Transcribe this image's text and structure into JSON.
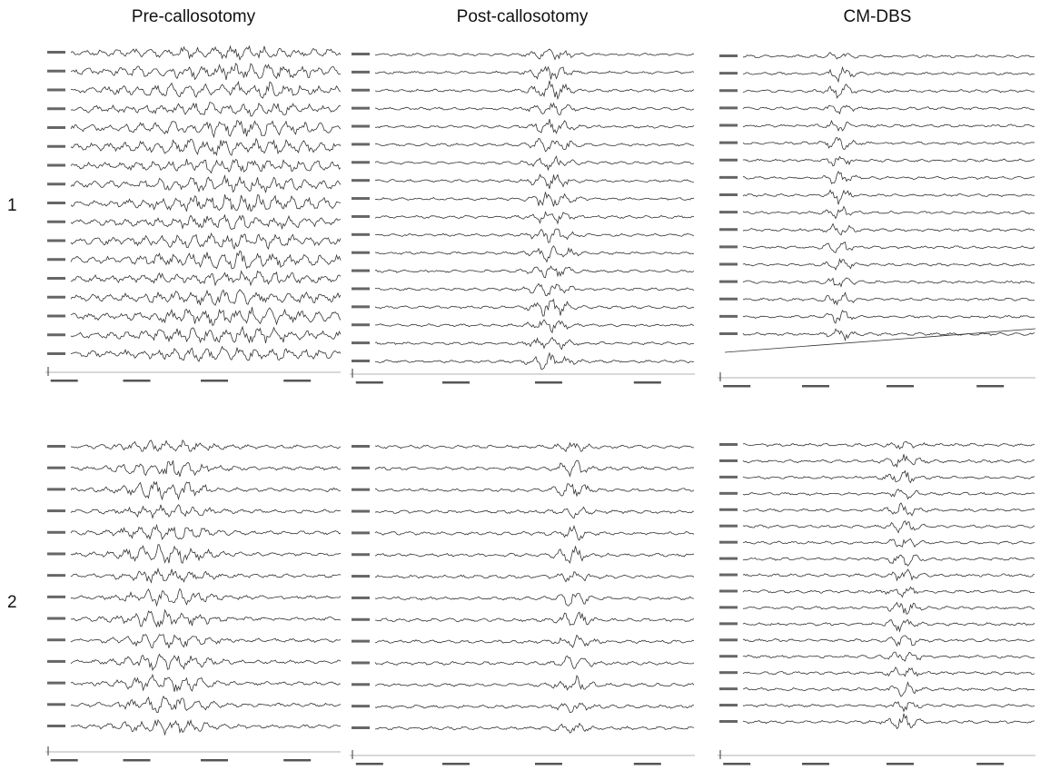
{
  "columns": [
    "Pre-callosotomy",
    "Post-callosotomy",
    "CM-DBS"
  ],
  "rows": [
    "1",
    "2"
  ]
}
